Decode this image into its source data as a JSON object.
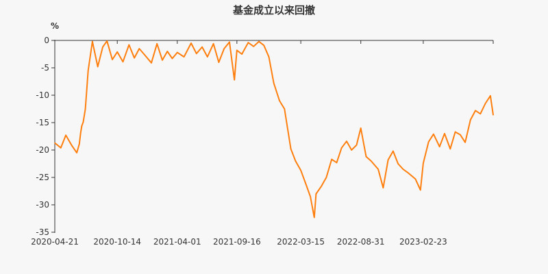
{
  "colors": {
    "line": "#ff7f0e",
    "axis": "#333333",
    "background": "#f7f7f7"
  },
  "chart_data": {
    "type": "line",
    "title": "基金成立以来回撤",
    "ylabel": "%",
    "xlabel": "",
    "ylim": [
      -35,
      0
    ],
    "yticks": [
      0,
      -5,
      -10,
      -15,
      -20,
      -25,
      -30,
      -35
    ],
    "xticks": [
      "2020-04-21",
      "2020-10-14",
      "2021-04-01",
      "2021-09-16",
      "2022-03-15",
      "2022-08-31",
      "2023-02-23"
    ],
    "grid": false,
    "legend": "none",
    "series": [
      {
        "x": [
          "2020-04-21",
          "2020-05-08",
          "2020-05-22",
          "2020-06-08",
          "2020-06-22",
          "2020-06-29",
          "2020-07-03",
          "2020-07-06",
          "2020-07-10",
          "2020-07-16",
          "2020-07-24",
          "2020-08-05",
          "2020-08-20",
          "2020-09-03",
          "2020-09-15",
          "2020-09-30",
          "2020-10-14",
          "2020-10-30",
          "2020-11-16",
          "2020-12-01",
          "2020-12-15",
          "2020-12-31",
          "2021-01-18",
          "2021-02-03",
          "2021-02-18",
          "2021-03-04",
          "2021-03-18",
          "2021-04-01",
          "2021-04-20",
          "2021-05-10",
          "2021-05-25",
          "2021-06-10",
          "2021-06-25",
          "2021-07-12",
          "2021-07-27",
          "2021-08-11",
          "2021-08-26",
          "2021-09-09",
          "2021-09-16",
          "2021-09-30",
          "2021-10-18",
          "2021-11-02",
          "2021-11-17",
          "2021-12-01",
          "2021-12-15",
          "2021-12-29",
          "2022-01-14",
          "2022-01-28",
          "2022-02-15",
          "2022-02-28",
          "2022-03-15",
          "2022-03-28",
          "2022-04-11",
          "2022-04-22",
          "2022-04-27",
          "2022-05-12",
          "2022-05-26",
          "2022-06-10",
          "2022-06-24",
          "2022-07-08",
          "2022-07-22",
          "2022-08-05",
          "2022-08-19",
          "2022-08-31",
          "2022-09-15",
          "2022-09-29",
          "2022-10-19",
          "2022-11-02",
          "2022-11-16",
          "2022-11-30",
          "2022-12-14",
          "2022-12-28",
          "2023-01-12",
          "2023-02-01",
          "2023-02-15",
          "2023-02-23",
          "2023-03-10",
          "2023-03-24",
          "2023-04-10",
          "2023-04-24",
          "2023-05-10",
          "2023-05-24",
          "2023-06-07",
          "2023-06-21",
          "2023-07-06",
          "2023-07-20",
          "2023-08-03",
          "2023-08-17",
          "2023-08-31",
          "2023-09-08"
        ],
        "values": [
          -18.7,
          -19.6,
          -17.3,
          -19.2,
          -20.5,
          -18.9,
          -16.8,
          -15.6,
          -14.9,
          -12.5,
          -5.5,
          -0.2,
          -4.8,
          -1.2,
          -0.1,
          -3.5,
          -2.1,
          -3.9,
          -0.8,
          -3.2,
          -1.5,
          -2.7,
          -4.1,
          -0.6,
          -3.6,
          -2.0,
          -3.3,
          -2.2,
          -3.0,
          -0.5,
          -2.4,
          -1.2,
          -3.0,
          -0.6,
          -4.0,
          -1.5,
          -0.3,
          -7.2,
          -1.8,
          -2.5,
          -0.4,
          -1.1,
          -0.2,
          -0.9,
          -3.0,
          -7.8,
          -11.0,
          -12.5,
          -19.8,
          -22.0,
          -23.7,
          -26.0,
          -28.5,
          -32.3,
          -28.0,
          -26.6,
          -25.0,
          -21.7,
          -22.3,
          -19.6,
          -18.4,
          -20.0,
          -19.1,
          -16.0,
          -21.2,
          -22.0,
          -23.5,
          -26.9,
          -21.8,
          -20.2,
          -22.5,
          -23.5,
          -24.2,
          -25.3,
          -27.3,
          -22.4,
          -18.5,
          -17.1,
          -19.4,
          -17.0,
          -19.8,
          -16.7,
          -17.2,
          -18.6,
          -14.5,
          -12.8,
          -13.4,
          -11.5,
          -10.1,
          -13.6
        ]
      }
    ]
  }
}
